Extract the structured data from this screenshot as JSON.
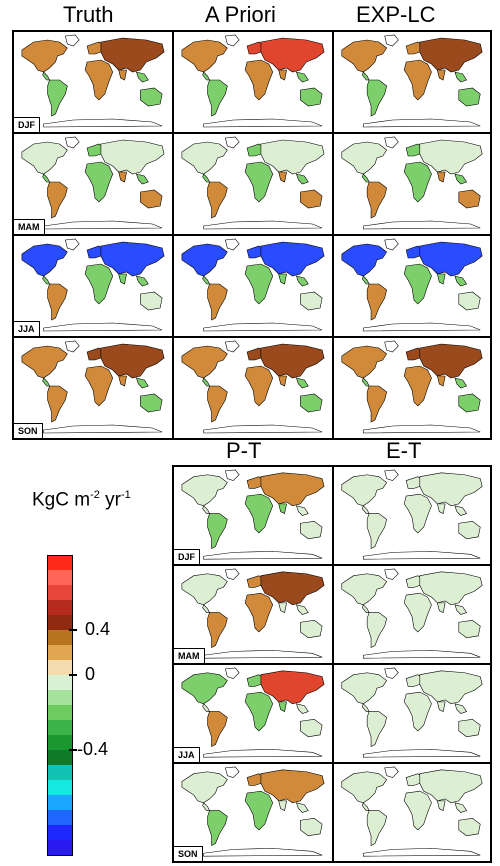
{
  "top_titles": [
    "Truth",
    "A Priori",
    "EXP-LC"
  ],
  "bottom_titles": [
    "P-T",
    "E-T"
  ],
  "seasons": [
    "DJF",
    "MAM",
    "JJA",
    "SON"
  ],
  "colorbar": {
    "unit": {
      "base": "KgC m",
      "exp1": "-2",
      "mid": " yr",
      "exp2": "-1"
    },
    "ticks": [
      "0.4",
      "0",
      "-0.4"
    ],
    "colors": [
      "#ff2a1c",
      "#ff6655",
      "#e8453a",
      "#b52a1f",
      "#8f2a10",
      "#b8741f",
      "#e0a650",
      "#f4dcb0",
      "#d9f2d4",
      "#a6e29c",
      "#6ccc5f",
      "#3db347",
      "#1a9830",
      "#0f7a2a",
      "#12c3b3",
      "#14e8e0",
      "#1ba6ff",
      "#1f66ff",
      "#1f28ff",
      "#2a1aef"
    ]
  },
  "map_colors": {
    "land_dry": "#d08a3a",
    "land_dark": "#9a4a1c",
    "land_green": "#7ccf6a",
    "land_light": "#dcefd2",
    "land_blue": "#2a4cff",
    "land_red": "#e0452e"
  }
}
